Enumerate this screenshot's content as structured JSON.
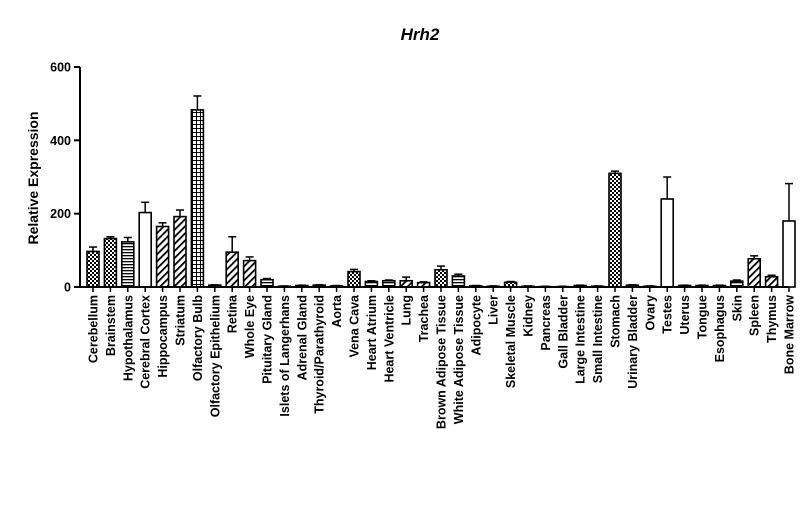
{
  "chart_data": {
    "type": "bar",
    "title": "Hrh2",
    "xlabel": "",
    "ylabel": "Relative Expression",
    "ylim": [
      0,
      600
    ],
    "yticks": [
      "0",
      "200",
      "400",
      "600"
    ],
    "grid": false,
    "legend": "none",
    "bar_color": "#000000",
    "categories": [
      "Cerebellum",
      "Brainstem",
      "Hypothalamus",
      "Cerebral Cortex",
      "Hippocampus",
      "Striatum",
      "Olfactory Bulb",
      "Olfactory Epithelium",
      "Retina",
      "Whole Eye",
      "Pituitary Gland",
      "Islets of Langerhans",
      "Adrenal Gland",
      "Thyroid/Parathyroid",
      "Aorta",
      "Vena Cava",
      "Heart Atrium",
      "Heart Ventricle",
      "Lung",
      "Trachea",
      "Brown Adipose Tissue",
      "White Adipose Tissue",
      "Adipocyte",
      "Liver",
      "Skeletal Muscle",
      "Kidney",
      "Pancreas",
      "Gall Bladder",
      "Large Intestine",
      "Small Intestine",
      "Stomach",
      "Urinary Bladder",
      "Ovary",
      "Testes",
      "Uterus",
      "Tongue",
      "Esophagus",
      "Skin",
      "Spleen",
      "Thymus",
      "Bone Marrow"
    ],
    "values": [
      97,
      132,
      123,
      203,
      165,
      192,
      483,
      5,
      95,
      72,
      20,
      2,
      4,
      5,
      3,
      42,
      15,
      17,
      17,
      12,
      47,
      30,
      3,
      2,
      13,
      2,
      1,
      1,
      4,
      2,
      310,
      5,
      2,
      240,
      4,
      4,
      4,
      16,
      77,
      28,
      180
    ],
    "errors": [
      12,
      5,
      12,
      28,
      10,
      18,
      38,
      1,
      42,
      10,
      3,
      1,
      1,
      1,
      1,
      6,
      2,
      2,
      10,
      2,
      10,
      5,
      1,
      1,
      2,
      1,
      1,
      1,
      1,
      1,
      6,
      1,
      1,
      60,
      1,
      1,
      1,
      3,
      8,
      4,
      102
    ],
    "patterns": [
      "check",
      "check",
      "hlines",
      "white",
      "diag",
      "diag",
      "grid",
      "white",
      "diag",
      "diag",
      "hlines",
      "white",
      "white",
      "white",
      "white",
      "check",
      "hlines",
      "hlines",
      "diag",
      "diag",
      "check",
      "hlines",
      "white",
      "white",
      "check",
      "white",
      "white",
      "white",
      "white",
      "white",
      "check",
      "white",
      "white",
      "white",
      "white",
      "white",
      "white",
      "hlines",
      "diag",
      "diag",
      "white"
    ]
  }
}
